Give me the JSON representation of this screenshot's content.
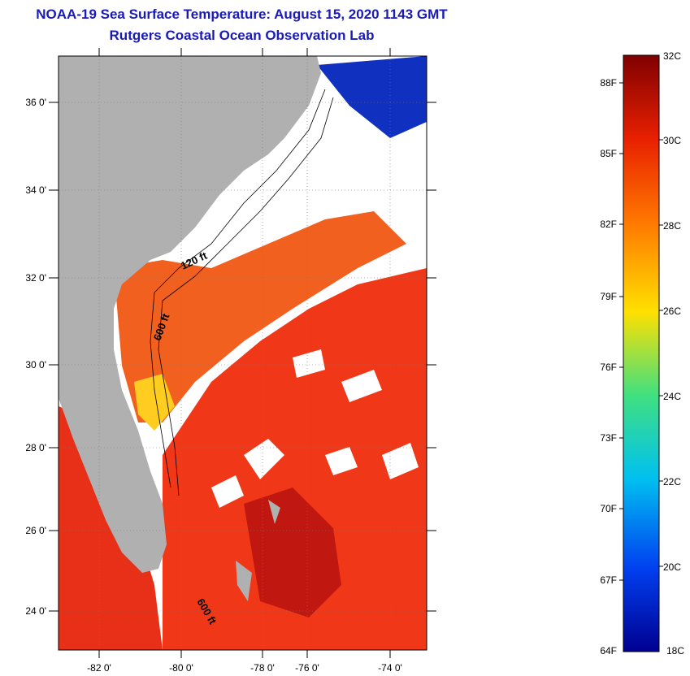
{
  "header": {
    "title": "NOAA-19 Sea Surface Temperature:  August 15, 2020 1143 GMT",
    "subtitle": "Rutgers Coastal Ocean Observation Lab"
  },
  "map": {
    "lat_labels": [
      "36 0'",
      "34 0'",
      "32 0'",
      "30 0'",
      "28 0'",
      "26 0'",
      "24 0'"
    ],
    "lon_labels": [
      "-82 0'",
      "-80 0'",
      "-78 0'",
      "-76 0'",
      "-74 0'"
    ],
    "contour_labels": [
      "120 ft",
      "600 ft",
      "600 ft"
    ],
    "colors": {
      "land": "#b0b0b0",
      "cloud": "#ffffff",
      "warm_sst": "#f03818"
    }
  },
  "colorbar": {
    "c_labels": [
      "32C",
      "30C",
      "28C",
      "26C",
      "24C",
      "22C",
      "20C",
      "18C"
    ],
    "f_labels": [
      "88F",
      "85F",
      "82F",
      "79F",
      "76F",
      "73F",
      "70F",
      "67F",
      "64F"
    ],
    "scale_stops": [
      "#800000",
      "#e82000",
      "#ff7800",
      "#ffe000",
      "#40e080",
      "#00c0f0",
      "#0040f0",
      "#000090"
    ]
  }
}
